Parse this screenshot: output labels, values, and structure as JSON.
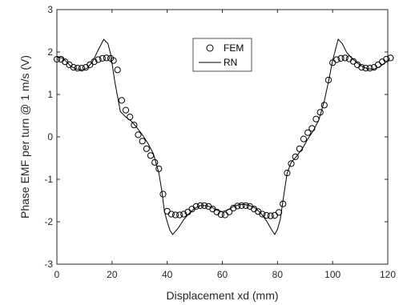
{
  "chart_data": {
    "type": "line",
    "xlabel": "Displacement xd (mm)",
    "ylabel": "Phase EMF per turn @ 1 m/s (V)",
    "xlim": [
      0,
      120
    ],
    "ylim": [
      -3,
      3
    ],
    "xticks": [
      0,
      20,
      40,
      60,
      80,
      100,
      120
    ],
    "yticks": [
      -3,
      -2,
      -1,
      0,
      1,
      2,
      3
    ],
    "grid": false,
    "legend_position": "top-center",
    "series": [
      {
        "name": "FEM",
        "marker": "circle",
        "color": "#000000",
        "points": [
          [
            0,
            1.83
          ],
          [
            1.5,
            1.83
          ],
          [
            3,
            1.77
          ],
          [
            4.5,
            1.7
          ],
          [
            6,
            1.64
          ],
          [
            7.5,
            1.62
          ],
          [
            9,
            1.62
          ],
          [
            10.5,
            1.64
          ],
          [
            12,
            1.7
          ],
          [
            13.5,
            1.77
          ],
          [
            15,
            1.82
          ],
          [
            16.5,
            1.85
          ],
          [
            18,
            1.86
          ],
          [
            19.5,
            1.85
          ],
          [
            20.5,
            1.8
          ],
          [
            22,
            1.58
          ],
          [
            23.5,
            0.86
          ],
          [
            25,
            0.63
          ],
          [
            26.5,
            0.47
          ],
          [
            28,
            0.28
          ],
          [
            29.5,
            0.05
          ],
          [
            31,
            -0.1
          ],
          [
            32.5,
            -0.28
          ],
          [
            34,
            -0.44
          ],
          [
            35.5,
            -0.6
          ],
          [
            37,
            -0.75
          ],
          [
            38.5,
            -1.35
          ],
          [
            40,
            -1.75
          ],
          [
            41.5,
            -1.82
          ],
          [
            43,
            -1.84
          ],
          [
            44.5,
            -1.84
          ],
          [
            46,
            -1.82
          ],
          [
            47.5,
            -1.77
          ],
          [
            49,
            -1.7
          ],
          [
            50.5,
            -1.64
          ],
          [
            52,
            -1.62
          ],
          [
            53.5,
            -1.62
          ],
          [
            55,
            -1.64
          ],
          [
            56.5,
            -1.7
          ],
          [
            58,
            -1.77
          ],
          [
            59.5,
            -1.83
          ],
          [
            61,
            -1.84
          ],
          [
            62.5,
            -1.77
          ],
          [
            64,
            -1.68
          ],
          [
            65.5,
            -1.63
          ],
          [
            67,
            -1.62
          ],
          [
            68.5,
            -1.62
          ],
          [
            70,
            -1.64
          ],
          [
            71.5,
            -1.7
          ],
          [
            73,
            -1.76
          ],
          [
            74.5,
            -1.82
          ],
          [
            76,
            -1.85
          ],
          [
            77.5,
            -1.86
          ],
          [
            79,
            -1.85
          ],
          [
            80.5,
            -1.78
          ],
          [
            82,
            -1.58
          ],
          [
            83.5,
            -0.85
          ],
          [
            85,
            -0.63
          ],
          [
            86.5,
            -0.47
          ],
          [
            88,
            -0.28
          ],
          [
            89.5,
            -0.05
          ],
          [
            91,
            0.1
          ],
          [
            92.5,
            0.2
          ],
          [
            94,
            0.42
          ],
          [
            95.5,
            0.58
          ],
          [
            97,
            0.75
          ],
          [
            98.5,
            1.34
          ],
          [
            100,
            1.75
          ],
          [
            101.5,
            1.82
          ],
          [
            103,
            1.85
          ],
          [
            104.5,
            1.86
          ],
          [
            106,
            1.84
          ],
          [
            107.5,
            1.78
          ],
          [
            109,
            1.7
          ],
          [
            110.5,
            1.64
          ],
          [
            112,
            1.62
          ],
          [
            113.5,
            1.62
          ],
          [
            115,
            1.64
          ],
          [
            116.5,
            1.7
          ],
          [
            118,
            1.77
          ],
          [
            119.5,
            1.83
          ],
          [
            121,
            1.86
          ]
        ]
      },
      {
        "name": "RN",
        "marker": "none",
        "color": "#000000",
        "points": [
          [
            0,
            1.88
          ],
          [
            2,
            1.86
          ],
          [
            4,
            1.74
          ],
          [
            5,
            1.66
          ],
          [
            7,
            1.6
          ],
          [
            9,
            1.58
          ],
          [
            11,
            1.62
          ],
          [
            13,
            1.78
          ],
          [
            15,
            2.05
          ],
          [
            17,
            2.3
          ],
          [
            18.5,
            2.2
          ],
          [
            19.5,
            1.95
          ],
          [
            21,
            1.3
          ],
          [
            23,
            0.6
          ],
          [
            25,
            0.47
          ],
          [
            27,
            0.37
          ],
          [
            29,
            0.22
          ],
          [
            31,
            0.05
          ],
          [
            33,
            -0.15
          ],
          [
            35,
            -0.4
          ],
          [
            37,
            -0.85
          ],
          [
            38,
            -1.25
          ],
          [
            39,
            -1.75
          ],
          [
            40,
            -2.0
          ],
          [
            41,
            -2.2
          ],
          [
            42,
            -2.3
          ],
          [
            44,
            -2.15
          ],
          [
            46,
            -1.95
          ],
          [
            48,
            -1.8
          ],
          [
            50,
            -1.68
          ],
          [
            52,
            -1.62
          ],
          [
            54,
            -1.62
          ],
          [
            56,
            -1.65
          ],
          [
            58,
            -1.73
          ],
          [
            60,
            -1.76
          ],
          [
            62,
            -1.72
          ],
          [
            64,
            -1.64
          ],
          [
            66,
            -1.6
          ],
          [
            68,
            -1.59
          ],
          [
            70,
            -1.62
          ],
          [
            72,
            -1.68
          ],
          [
            74,
            -1.8
          ],
          [
            76,
            -1.98
          ],
          [
            78,
            -2.2
          ],
          [
            79,
            -2.3
          ],
          [
            80,
            -2.18
          ],
          [
            81,
            -1.95
          ],
          [
            82,
            -1.5
          ],
          [
            83.5,
            -0.85
          ],
          [
            85,
            -0.6
          ],
          [
            87,
            -0.45
          ],
          [
            89,
            -0.28
          ],
          [
            91,
            -0.05
          ],
          [
            93,
            0.15
          ],
          [
            95,
            0.4
          ],
          [
            97,
            0.85
          ],
          [
            98.5,
            1.3
          ],
          [
            100,
            1.8
          ],
          [
            101,
            2.05
          ],
          [
            102,
            2.3
          ],
          [
            103.5,
            2.2
          ],
          [
            105,
            2.0
          ],
          [
            107,
            1.85
          ],
          [
            109,
            1.74
          ],
          [
            111,
            1.65
          ],
          [
            113,
            1.6
          ],
          [
            115,
            1.6
          ],
          [
            117,
            1.65
          ],
          [
            119,
            1.75
          ],
          [
            120.5,
            1.84
          ]
        ]
      }
    ]
  }
}
